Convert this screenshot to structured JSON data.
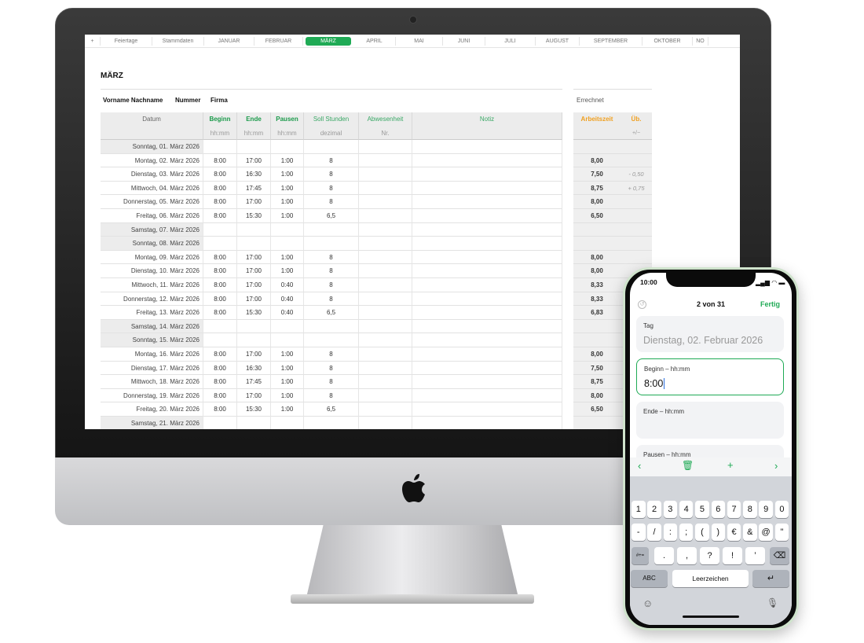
{
  "sheet": {
    "tabs": [
      "+",
      "Feiertage",
      "Stammdaten",
      "JANUAR",
      "FEBRUAR",
      "MÄRZ",
      "APRIL",
      "MAI",
      "JUNI",
      "JULI",
      "AUGUST",
      "SEPTEMBER",
      "OKTOBER",
      "NO"
    ],
    "active_tab": "MÄRZ",
    "title": "MÄRZ",
    "info": {
      "name": "Vorname Nachname",
      "number": "Nummer",
      "company": "Firma"
    },
    "calc_title": "Errechnet",
    "columns": [
      {
        "label": "Datum",
        "sub": ""
      },
      {
        "label": "Beginn",
        "sub": "hh:mm"
      },
      {
        "label": "Ende",
        "sub": "hh:mm"
      },
      {
        "label": "Pausen",
        "sub": "hh:mm"
      },
      {
        "label": "Soll Stunden",
        "sub": "dezimal"
      },
      {
        "label": "Abwesenheit",
        "sub": "Nr."
      },
      {
        "label": "Notiz",
        "sub": ""
      }
    ],
    "calc_columns": [
      {
        "label": "Arbeitszeit",
        "sub": ""
      },
      {
        "label": "Üb.",
        "sub": "+/−"
      }
    ],
    "rows": [
      {
        "date": "Sonntag, 01. März 2026",
        "weekend": true
      },
      {
        "date": "Montag, 02. März 2026",
        "b": "8:00",
        "e": "17:00",
        "p": "1:00",
        "s": "8",
        "a": "8,00"
      },
      {
        "date": "Dienstag, 03. März 2026",
        "b": "8:00",
        "e": "16:30",
        "p": "1:00",
        "s": "8",
        "a": "7,50",
        "u": "- 0,50"
      },
      {
        "date": "Mittwoch, 04. März 2026",
        "b": "8:00",
        "e": "17:45",
        "p": "1:00",
        "s": "8",
        "a": "8,75",
        "u": "+ 0,75"
      },
      {
        "date": "Donnerstag, 05. März 2026",
        "b": "8:00",
        "e": "17:00",
        "p": "1:00",
        "s": "8",
        "a": "8,00"
      },
      {
        "date": "Freitag, 06. März 2026",
        "b": "8:00",
        "e": "15:30",
        "p": "1:00",
        "s": "6,5",
        "a": "6,50"
      },
      {
        "date": "Samstag, 07. März 2026",
        "weekend": true
      },
      {
        "date": "Sonntag, 08. März 2026",
        "weekend": true
      },
      {
        "date": "Montag, 09. März 2026",
        "b": "8:00",
        "e": "17:00",
        "p": "1:00",
        "s": "8",
        "a": "8,00"
      },
      {
        "date": "Dienstag, 10. März 2026",
        "b": "8:00",
        "e": "17:00",
        "p": "1:00",
        "s": "8",
        "a": "8,00"
      },
      {
        "date": "Mittwoch, 11. März 2026",
        "b": "8:00",
        "e": "17:00",
        "p": "0:40",
        "s": "8",
        "a": "8,33"
      },
      {
        "date": "Donnerstag, 12. März 2026",
        "b": "8:00",
        "e": "17:00",
        "p": "0:40",
        "s": "8",
        "a": "8,33"
      },
      {
        "date": "Freitag, 13. März 2026",
        "b": "8:00",
        "e": "15:30",
        "p": "0:40",
        "s": "6,5",
        "a": "6,83"
      },
      {
        "date": "Samstag, 14. März 2026",
        "weekend": true
      },
      {
        "date": "Sonntag, 15. März 2026",
        "weekend": true
      },
      {
        "date": "Montag, 16. März 2026",
        "b": "8:00",
        "e": "17:00",
        "p": "1:00",
        "s": "8",
        "a": "8,00"
      },
      {
        "date": "Dienstag, 17. März 2026",
        "b": "8:00",
        "e": "16:30",
        "p": "1:00",
        "s": "8",
        "a": "7,50"
      },
      {
        "date": "Mittwoch, 18. März 2026",
        "b": "8:00",
        "e": "17:45",
        "p": "1:00",
        "s": "8",
        "a": "8,75"
      },
      {
        "date": "Donnerstag, 19. März 2026",
        "b": "8:00",
        "e": "17:00",
        "p": "1:00",
        "s": "8",
        "a": "8,00"
      },
      {
        "date": "Freitag, 20. März 2026",
        "b": "8:00",
        "e": "15:30",
        "p": "1:00",
        "s": "6,5",
        "a": "6,50"
      },
      {
        "date": "Samstag, 21. März 2026",
        "weekend": true
      }
    ]
  },
  "phone": {
    "time": "10:00",
    "counter": "2 von 31",
    "done": "Fertig",
    "fields": [
      {
        "label": "Tag",
        "value": "Dienstag, 02. Februar 2026"
      },
      {
        "label": "Beginn – hh:mm",
        "value": "8:00"
      },
      {
        "label": "Ende – hh:mm",
        "value": ""
      },
      {
        "label": "Pausen – hh:mm",
        "value": ""
      }
    ],
    "keys_row1": [
      "1",
      "2",
      "3",
      "4",
      "5",
      "6",
      "7",
      "8",
      "9",
      "0"
    ],
    "keys_row2": [
      "-",
      "/",
      ":",
      ";",
      "(",
      ")",
      "€",
      "&",
      "@",
      "\""
    ],
    "keys_row3": [
      ".",
      ",",
      "?",
      "!",
      "’"
    ],
    "symbols_key": "#+=",
    "abc_key": "ABC",
    "space_key": "Leerzeichen",
    "accent": "#1faa55"
  },
  "colors": {
    "green": "#1a9a4a",
    "orange": "#f0a020",
    "weekend": "#ececec"
  }
}
